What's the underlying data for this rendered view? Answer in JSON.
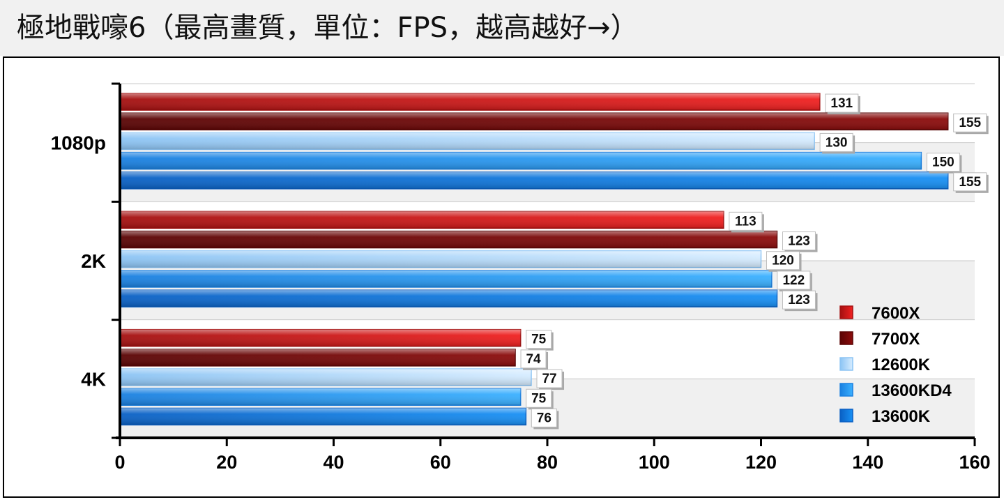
{
  "title": "極地戰嚎6（最高畫質，單位：FPS，越高越好→）",
  "colors": {
    "7600X": [
      "#f02020",
      "#a41010"
    ],
    "7700X": [
      "#8c0c0c",
      "#5a0404"
    ],
    "12600K": [
      "#d6ecff",
      "#8cc4f4"
    ],
    "13600KD4": [
      "#3ab0ff",
      "#1a80e0"
    ],
    "13600K": [
      "#1890f4",
      "#0a60c4"
    ]
  },
  "chart_data": {
    "type": "bar",
    "orientation": "horizontal",
    "categories": [
      "1080p",
      "2K",
      "4K"
    ],
    "series": [
      {
        "name": "7600X",
        "values": [
          131,
          113,
          75
        ]
      },
      {
        "name": "7700X",
        "values": [
          155,
          123,
          74
        ]
      },
      {
        "name": "12600K",
        "values": [
          130,
          120,
          77
        ]
      },
      {
        "name": "13600KD4",
        "values": [
          150,
          122,
          75
        ]
      },
      {
        "name": "13600K",
        "values": [
          155,
          123,
          76
        ]
      }
    ],
    "xlim": [
      0,
      160
    ],
    "xticks": [
      "0",
      "20",
      "40",
      "60",
      "80",
      "100",
      "120",
      "140",
      "160"
    ],
    "legend_position": "bottom-right",
    "data_labels": true,
    "grid": true
  }
}
